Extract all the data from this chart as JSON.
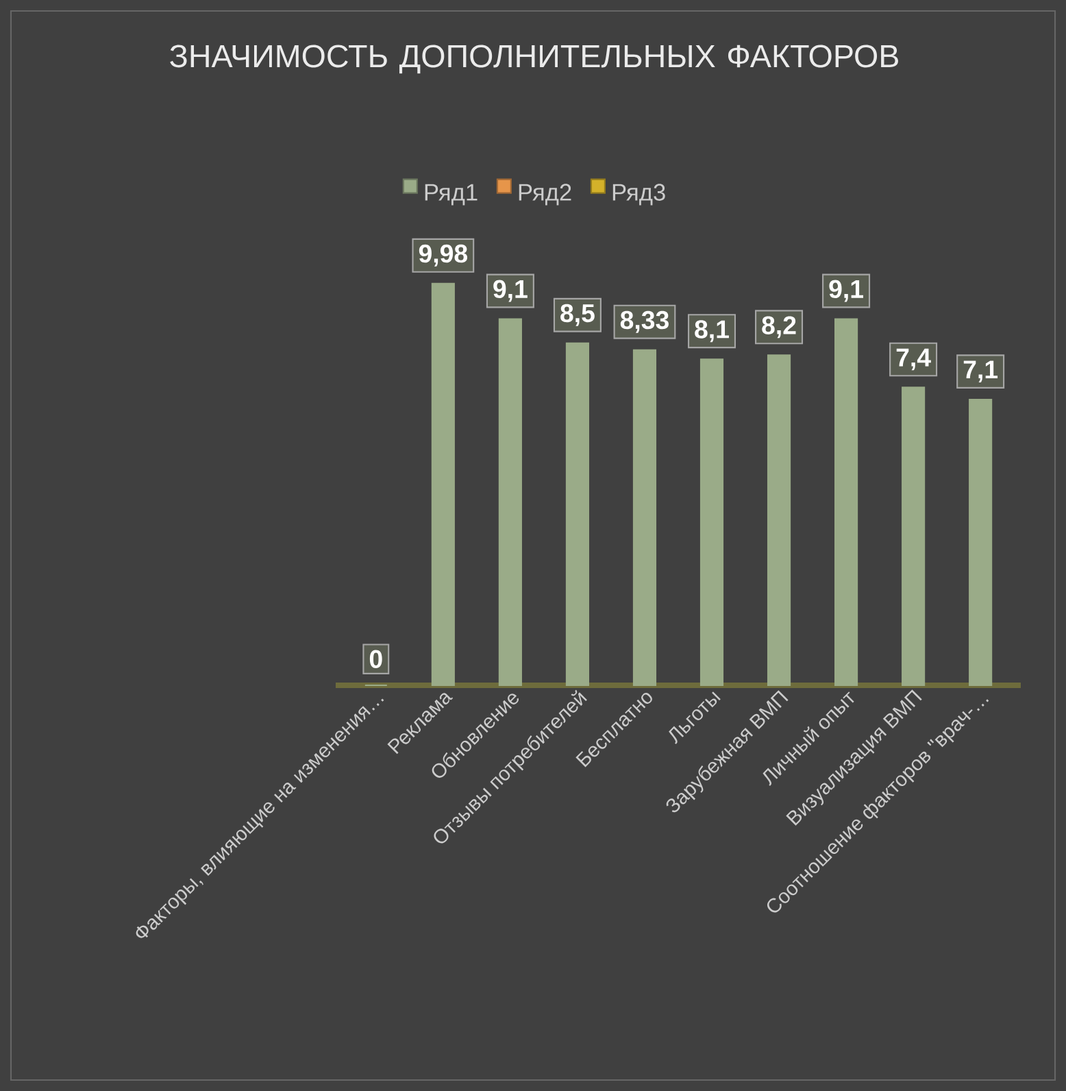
{
  "chart_data": {
    "type": "bar",
    "title": "ЗНАЧИМОСТЬ ДОПОЛНИТЕЛЬНЫХ ФАКТОРОВ",
    "categories": [
      "Факторы, влияющие на изменения…",
      "Реклама",
      "Обновление",
      "Отзывы потребителей",
      "Бесплатно",
      "Льготы",
      "Зарубежная ВМП",
      "Личный опыт",
      "Визуализация ВМП",
      "Соотношение факторов \"врач-…"
    ],
    "series": [
      {
        "name": "Ряд1",
        "color": "#9aab88",
        "values": [
          0,
          9.98,
          9.1,
          8.5,
          8.33,
          8.1,
          8.2,
          9.1,
          7.4,
          7.1
        ],
        "value_labels": [
          "0",
          "9,98",
          "9,1",
          "8,5",
          "8,33",
          "8,1",
          "8,2",
          "9,1",
          "7,4",
          "7,1"
        ]
      },
      {
        "name": "Ряд2",
        "color": "#e6954a",
        "values": [
          null,
          null,
          null,
          null,
          null,
          null,
          null,
          null,
          null,
          null
        ]
      },
      {
        "name": "Ряд3",
        "color": "#d4b12a",
        "values": [
          null,
          null,
          null,
          null,
          null,
          null,
          null,
          null,
          null,
          null
        ]
      }
    ],
    "legend": "top",
    "grid": false
  }
}
